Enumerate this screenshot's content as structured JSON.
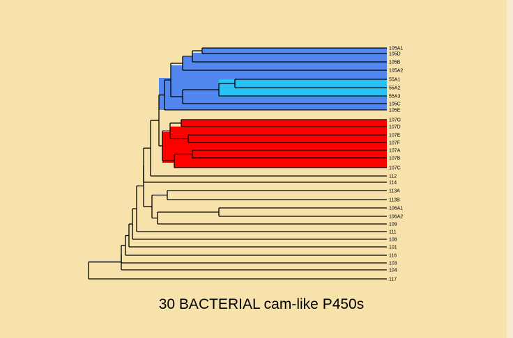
{
  "caption": "30 BACTERIAL cam-like P450s",
  "colors": {
    "background": "#f7e2ab",
    "clade_105": "#5287f0",
    "clade_55": "#28c0f5",
    "clade_107": "#ff0000",
    "right_edge_band": "#f8ecd0"
  },
  "tree": {
    "leaves": [
      "105A1",
      "105D",
      "105B",
      "105A2",
      "55A1",
      "55A2",
      "55A3",
      "105C",
      "105E",
      "107G",
      "107D",
      "107E",
      "107F",
      "107A",
      "107B",
      "107C",
      "112",
      "114",
      "113A",
      "113B",
      "106A1",
      "106A2",
      "109",
      "111",
      "108",
      "101",
      "116",
      "103",
      "104",
      "117"
    ]
  }
}
